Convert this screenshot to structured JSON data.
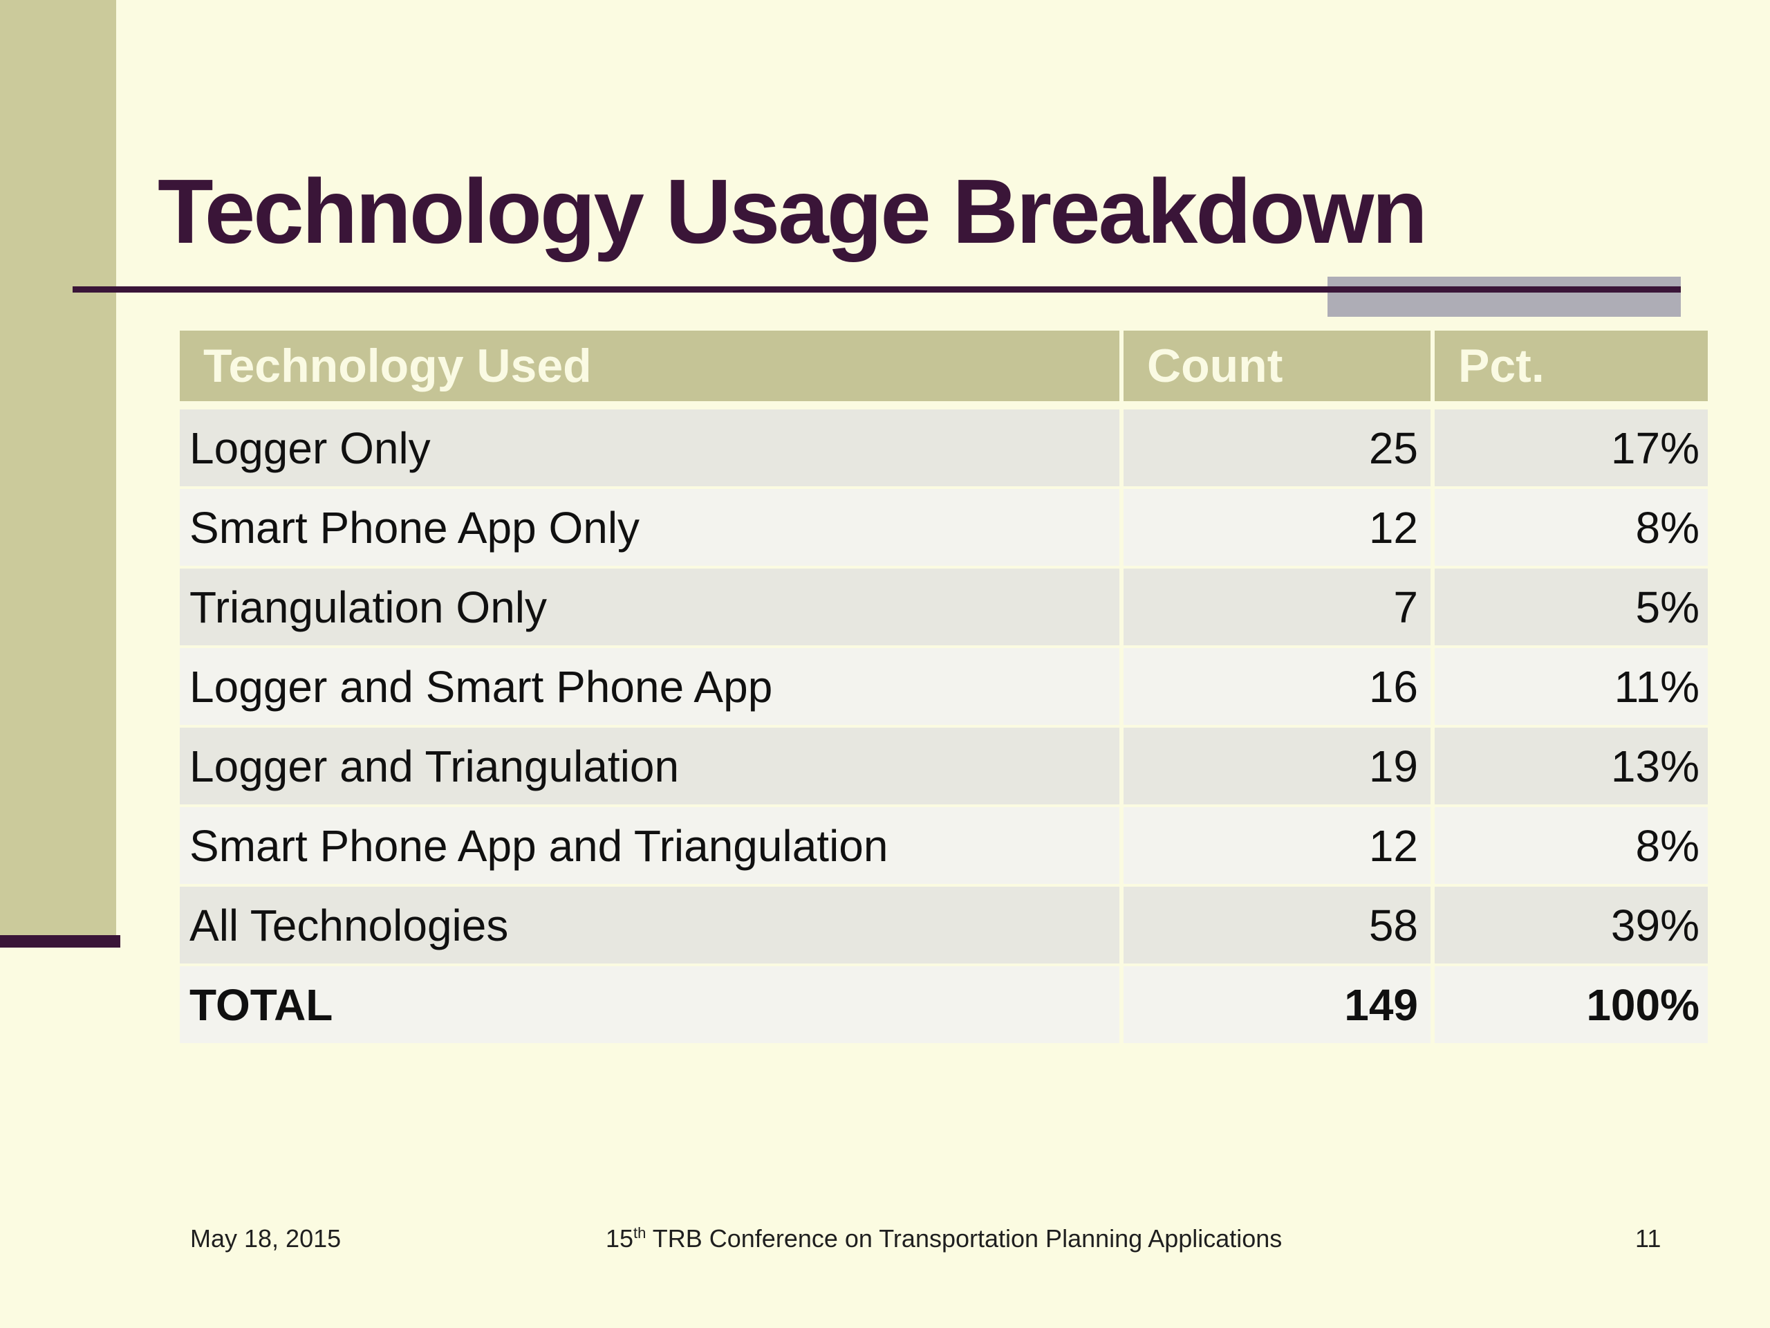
{
  "slide": {
    "title": "Technology Usage Breakdown",
    "colors": {
      "background": "#FBFBE1",
      "sidebar": "#CBCA9B",
      "accent": "#3A1538",
      "header-olive": "#C5C496",
      "gray": "#AEADB6",
      "row-dark": "#E7E7E0",
      "row-light": "#F3F3EE",
      "header-text": "#FAFAE3",
      "body-text": "#101010",
      "footer-text": "#1F1F1F"
    }
  },
  "table": {
    "columns": [
      "Technology Used",
      "Count",
      "Pct."
    ],
    "rows": [
      {
        "technology": "Logger Only",
        "count": "25",
        "pct": "17%",
        "emphasis": false
      },
      {
        "technology": "Smart Phone App Only",
        "count": "12",
        "pct": "8%",
        "emphasis": false
      },
      {
        "technology": "Triangulation Only",
        "count": "7",
        "pct": "5%",
        "emphasis": false
      },
      {
        "technology": "Logger and Smart Phone App",
        "count": "16",
        "pct": "11%",
        "emphasis": false
      },
      {
        "technology": "Logger and Triangulation",
        "count": "19",
        "pct": "13%",
        "emphasis": false
      },
      {
        "technology": "Smart Phone App and Triangulation",
        "count": "12",
        "pct": "8%",
        "emphasis": false
      },
      {
        "technology": "All Technologies",
        "count": "58",
        "pct": "39%",
        "emphasis": false
      },
      {
        "technology": "TOTAL",
        "count": "149",
        "pct": "100%",
        "emphasis": true
      }
    ]
  },
  "footer": {
    "date": "May 18, 2015",
    "conference_number": "15",
    "conference_ordinal": "th",
    "conference_rest": " TRB Conference on Transportation Planning Applications",
    "page_number": "11"
  },
  "chart_data": {
    "type": "table",
    "title": "Technology Usage Breakdown",
    "columns": [
      "Technology Used",
      "Count",
      "Pct."
    ],
    "rows": [
      [
        "Logger Only",
        25,
        "17%"
      ],
      [
        "Smart Phone App Only",
        12,
        "8%"
      ],
      [
        "Triangulation Only",
        7,
        "5%"
      ],
      [
        "Logger and Smart Phone App",
        16,
        "11%"
      ],
      [
        "Logger and Triangulation",
        19,
        "13%"
      ],
      [
        "Smart Phone App and Triangulation",
        12,
        "8%"
      ],
      [
        "All Technologies",
        58,
        "39%"
      ],
      [
        "TOTAL",
        149,
        "100%"
      ]
    ]
  }
}
